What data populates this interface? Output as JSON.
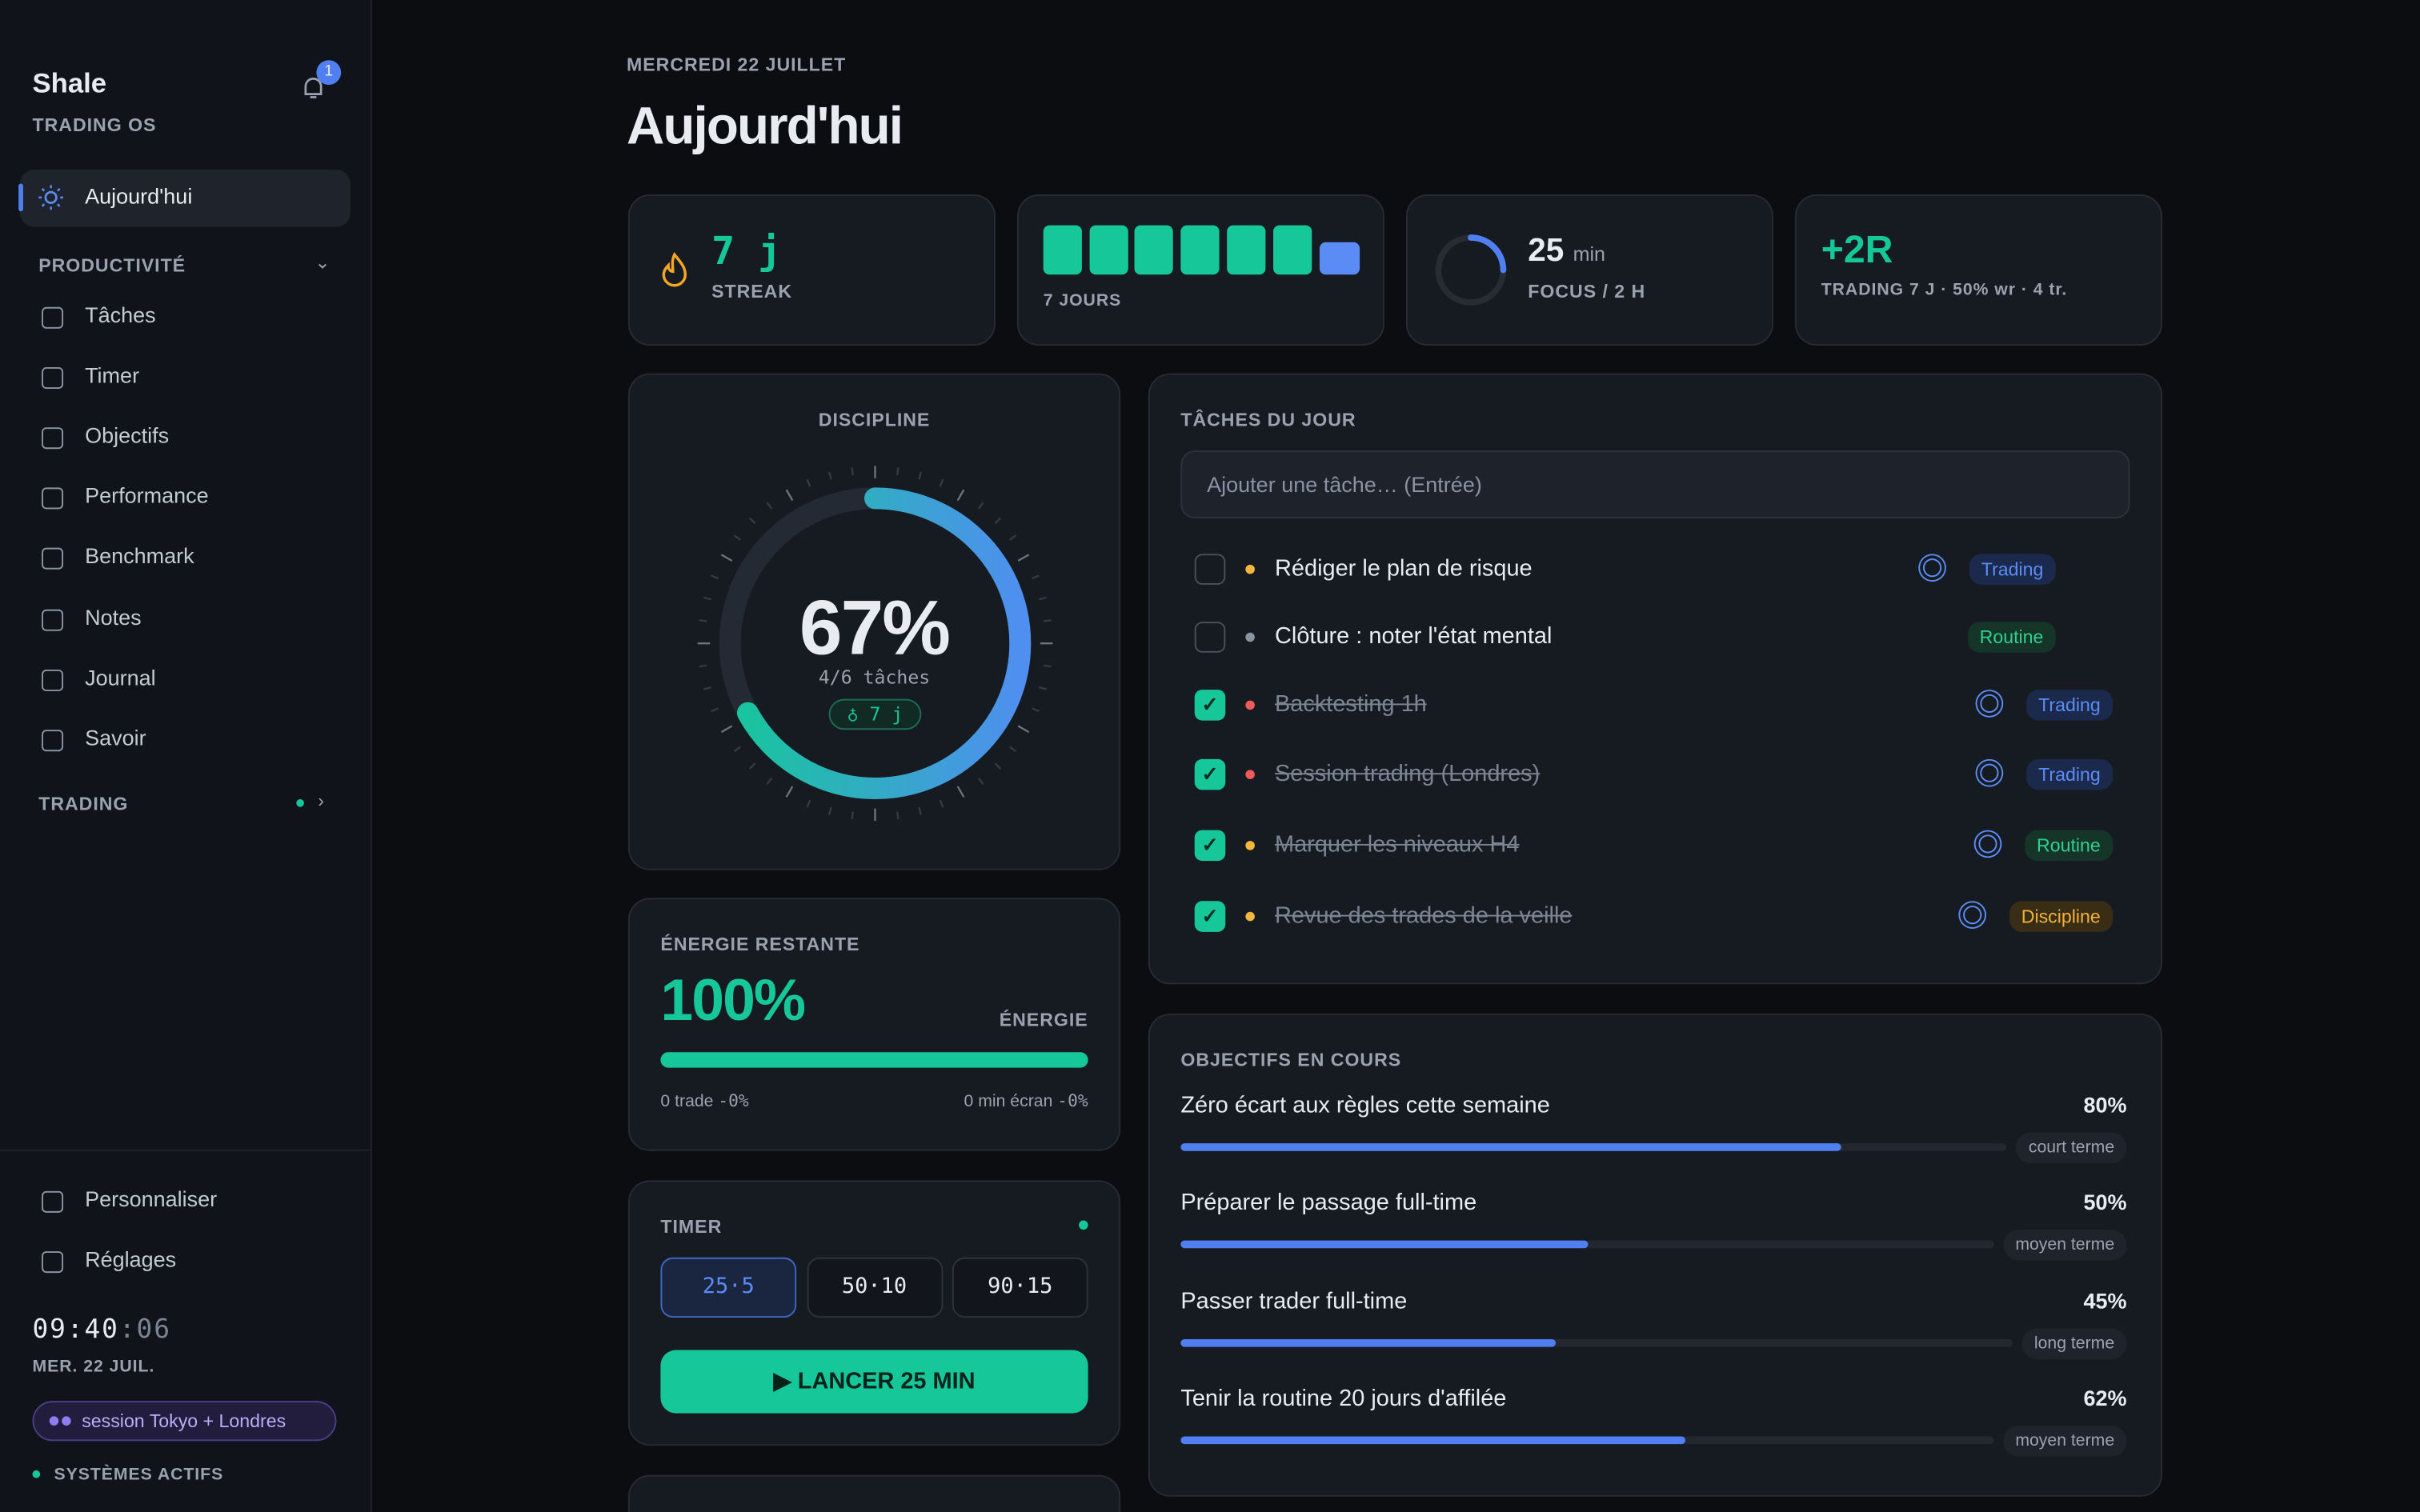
{
  "sidebar": {
    "brand": "Shale",
    "subtitle": "TRADING OS",
    "notifications": "1",
    "active": "Aujourd'hui",
    "section_productivity": "PRODUCTIVITÉ",
    "nav": [
      "Tâches",
      "Timer",
      "Objectifs",
      "Performance",
      "Benchmark",
      "Notes",
      "Journal",
      "Savoir"
    ],
    "section_trading": "TRADING",
    "bottom": [
      "Personnaliser",
      "Réglages"
    ],
    "clock": "09:40",
    "clock_seconds": ":06",
    "date": "MER. 22 JUIL.",
    "session": "session Tokyo + Londres",
    "status": "SYSTÈMES ACTIFS"
  },
  "header": {
    "date": "MERCREDI 22 JUILLET",
    "title": "Aujourd'hui"
  },
  "stats": {
    "streak_value": "7 j",
    "streak_label": "STREAK",
    "days_label": "7 JOURS",
    "focus_value": "25",
    "focus_unit": "min",
    "focus_label": "FOCUS / 2 H",
    "trading_value": "+2R",
    "trading_label": "TRADING 7 J · 50% wr · 4 tr."
  },
  "discipline": {
    "title": "DISCIPLINE",
    "percent": "67%",
    "tasks": "4/6 tâches",
    "streak": "7 j"
  },
  "energy": {
    "title": "ÉNERGIE RESTANTE",
    "value": "100%",
    "label": "ÉNERGIE",
    "left": "0 trade",
    "left_delta": "-0%",
    "right": "0 min écran",
    "right_delta": "-0%"
  },
  "timer": {
    "title": "TIMER",
    "presets": [
      "25·5",
      "50·10",
      "90·15"
    ],
    "button": "LANCER 25 MIN"
  },
  "tasks": {
    "title": "TÂCHES DU JOUR",
    "placeholder": "Ajouter une tâche… (Entrée)",
    "items": [
      {
        "text": "Rédiger le plan de risque",
        "tag": "Trading",
        "done": false,
        "dot": "#f5b73b",
        "target": true
      },
      {
        "text": "Clôture : noter l'état mental",
        "tag": "Routine",
        "done": false,
        "dot": "#8a93a3",
        "target": false
      },
      {
        "text": "Backtesting 1h",
        "tag": "Trading",
        "done": true,
        "dot": "#ef5a5a",
        "target": true
      },
      {
        "text": "Session trading (Londres)",
        "tag": "Trading",
        "done": true,
        "dot": "#ef5a5a",
        "target": true
      },
      {
        "text": "Marquer les niveaux H4",
        "tag": "Routine",
        "done": true,
        "dot": "#f5b73b",
        "target": true
      },
      {
        "text": "Revue des trades de la veille",
        "tag": "Discipline",
        "done": true,
        "dot": "#f5b73b",
        "target": true
      }
    ]
  },
  "goals": {
    "title": "OBJECTIFS EN COURS",
    "items": [
      {
        "name": "Zéro écart aux règles cette semaine",
        "percent": "80%",
        "term": "court terme"
      },
      {
        "name": "Préparer le passage full-time",
        "percent": "50%",
        "term": "moyen terme"
      },
      {
        "name": "Passer trader full-time",
        "percent": "45%",
        "term": "long terme"
      },
      {
        "name": "Tenir la routine 20 jours d'affilée",
        "percent": "62%",
        "term": "moyen terme"
      }
    ]
  }
}
